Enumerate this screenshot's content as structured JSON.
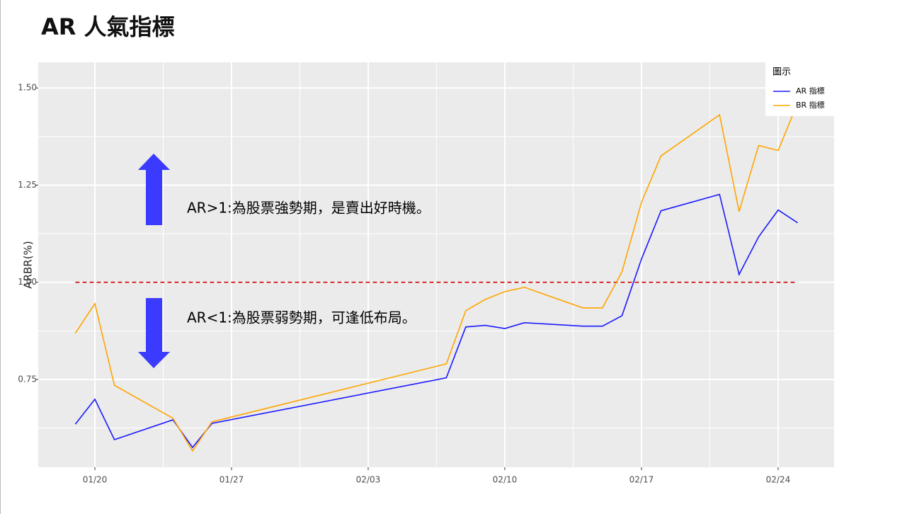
{
  "chart_data": {
    "type": "line",
    "title": "AR 人氣指標",
    "y_label": "ARBR(%)",
    "x": [
      "01/19",
      "01/20",
      "01/21",
      "01/24",
      "01/25",
      "01/26",
      "02/07",
      "02/08",
      "02/09",
      "02/10",
      "02/11",
      "02/14",
      "02/15",
      "02/16",
      "02/17",
      "02/18",
      "02/21",
      "02/22",
      "02/23",
      "02/24",
      "02/25"
    ],
    "series": [
      {
        "name": "AR 指標",
        "color": "#1a1aff",
        "values": [
          0.635,
          0.699,
          0.595,
          0.646,
          0.575,
          0.637,
          0.754,
          0.885,
          0.889,
          0.881,
          0.896,
          0.887,
          0.887,
          0.914,
          1.06,
          1.184,
          1.226,
          1.02,
          1.117,
          1.186,
          1.153
        ]
      },
      {
        "name": "BR 指標",
        "color": "#ffa500",
        "values": [
          0.869,
          0.945,
          0.735,
          0.65,
          0.566,
          0.641,
          0.79,
          0.927,
          0.956,
          0.976,
          0.987,
          0.934,
          0.934,
          1.027,
          1.206,
          1.325,
          1.431,
          1.182,
          1.352,
          1.339,
          1.462
        ]
      }
    ],
    "xticks": [
      "01/20",
      "01/27",
      "02/03",
      "02/10",
      "02/17",
      "02/24"
    ],
    "ylim": [
      0.524,
      1.566
    ],
    "yticks": [
      {
        "value": 0.75,
        "label": "0.75"
      },
      {
        "value": 1.0,
        "label": "1.00"
      },
      {
        "value": 1.25,
        "label": "1.25"
      },
      {
        "value": 1.5,
        "label": "1.50"
      }
    ],
    "hline": {
      "value": 1.0,
      "color": "#cc0000"
    },
    "grid": true,
    "legend": {
      "title": "圖示",
      "position": "top-right"
    },
    "annotations": [
      "AR>1:為股票強勢期，是賣出好時機。",
      "AR<1:為股票弱勢期，可逢低布局。"
    ]
  }
}
